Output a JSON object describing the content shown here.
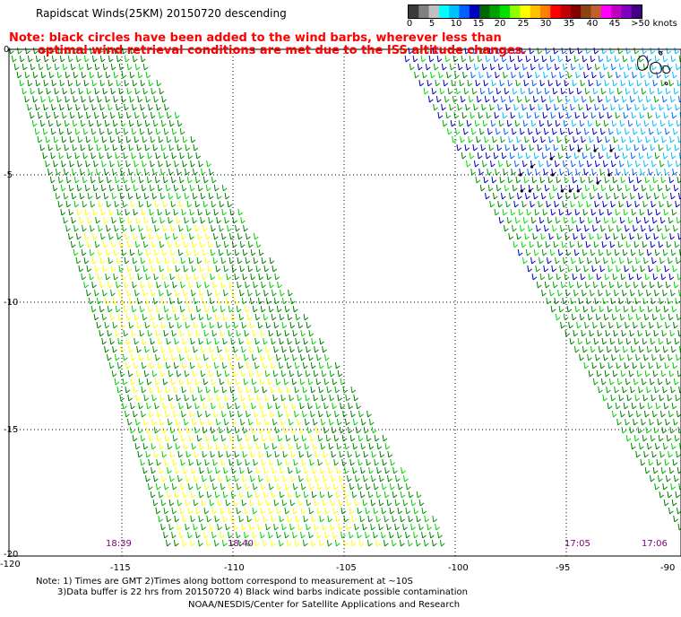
{
  "header": {
    "title": "Rapidscat Winds(25KM) 20150720 descending",
    "note_line1": "Note: black circles have been added to the wind barbs, wherever less than",
    "note_line2": "optimal wind retrieval conditions are met due to the ISS altitude changes."
  },
  "colorbar": {
    "colors": [
      "#3a3a3a",
      "#808080",
      "#c0c0c0",
      "#00ffff",
      "#00bfff",
      "#0060ff",
      "#0000c0",
      "#006400",
      "#00a000",
      "#00e000",
      "#90ff00",
      "#ffff00",
      "#ffc000",
      "#ff8000",
      "#ff0000",
      "#c00000",
      "#800000",
      "#8b4513",
      "#c06030",
      "#ff00ff",
      "#c000c0",
      "#8000c0",
      "#400080"
    ],
    "labels": [
      "0",
      "5",
      "10",
      "15",
      "20",
      "25",
      "30",
      "35",
      "40",
      "45",
      ">50 knots"
    ]
  },
  "map": {
    "lon_labels": [
      "-120",
      "-115",
      "-110",
      "-105",
      "-100",
      "-95",
      "-90"
    ],
    "lat_labels": [
      "0",
      "-5",
      "-10",
      "-15",
      "-20"
    ],
    "time_labels": [
      "18:39",
      "18:40",
      "17:05",
      "17:06"
    ]
  },
  "footer": {
    "line1": "Note: 1) Times are GMT 2)Times along bottom correspond to measurement at ~10S",
    "line2": "3)Data buffer is 22 hrs from 20150720 4) Black wind barbs indicate possible contamination",
    "line3": "NOAA/NESDIS/Center for Satellite Applications and Research"
  }
}
